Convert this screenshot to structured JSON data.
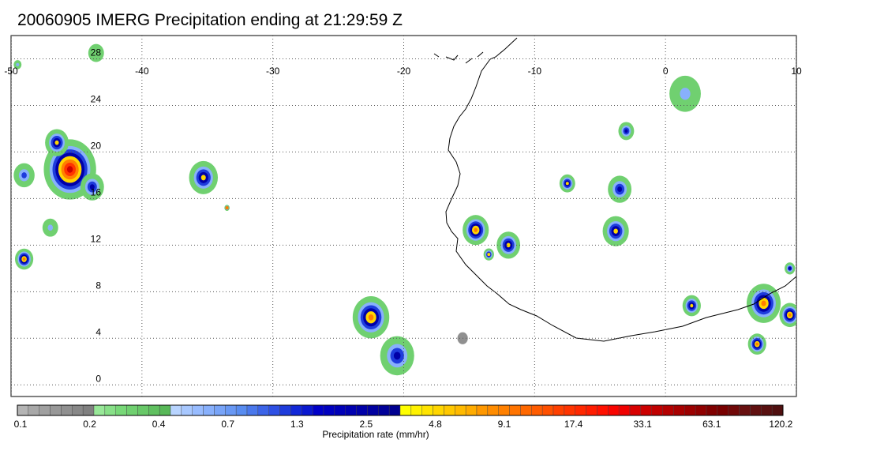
{
  "title": "20060905 IMERG Precipitation ending at 21:29:59 Z",
  "map": {
    "lon_min": -50,
    "lon_max": 10,
    "lat_min": -1,
    "lat_max": 30,
    "lon_ticks": [
      -50,
      -40,
      -30,
      -20,
      -10,
      0,
      10
    ],
    "lon_labels": [
      "-50",
      "-40",
      "-30",
      "-20",
      "-10",
      "0",
      "10"
    ],
    "lat_ticks": [
      0,
      4,
      8,
      12,
      16,
      20,
      24,
      28
    ],
    "lat_labels": [
      "0",
      "4",
      "8",
      "12",
      "16",
      "20",
      "24",
      "28"
    ],
    "coastline_color": "#000000",
    "grid_color": "#555555"
  },
  "colorbar": {
    "label": "Precipitation rate (mm/hr)",
    "tick_labels": [
      "0.1",
      "0.2",
      "0.4",
      "0.7",
      "1.3",
      "2.5",
      "4.8",
      "9.1",
      "17.4",
      "33.1",
      "63.1",
      "120.2"
    ],
    "colors": [
      "#b4b4b4",
      "#a8a8a8",
      "#a0a0a0",
      "#989898",
      "#909090",
      "#888888",
      "#808080",
      "#98e898",
      "#88e088",
      "#78d878",
      "#70d070",
      "#68c868",
      "#60c060",
      "#58b858",
      "#b8d4ff",
      "#a8c8ff",
      "#98bcff",
      "#88b0fc",
      "#78a4f8",
      "#6898f4",
      "#588cf0",
      "#4a78ec",
      "#3c64e8",
      "#2e50e4",
      "#1e3cdc",
      "#1228d8",
      "#0a18d0",
      "#0000c8",
      "#0000c0",
      "#0000b8",
      "#0000b0",
      "#0000a8",
      "#0000a0",
      "#000098",
      "#000090",
      "#ffff00",
      "#fff200",
      "#ffe400",
      "#ffd600",
      "#ffc800",
      "#ffba00",
      "#ffac00",
      "#ff9800",
      "#ff8c00",
      "#ff8000",
      "#ff7400",
      "#ff6800",
      "#ff5c00",
      "#ff5000",
      "#ff4000",
      "#ff3400",
      "#ff2800",
      "#ff1c00",
      "#ff1000",
      "#f80400",
      "#f00000",
      "#d80000",
      "#cc0000",
      "#c00000",
      "#b40000",
      "#a80000",
      "#9c0000",
      "#900000",
      "#800000",
      "#780000",
      "#700808",
      "#681010",
      "#601010",
      "#581010",
      "#501010"
    ]
  },
  "precipitation_cells": [
    {
      "name": "storm-cell-azores-northwest",
      "lon": -49.5,
      "lat": 27.5,
      "radius": 0.3,
      "peak": 0.7
    },
    {
      "name": "storm-cell-north-west-atlantic",
      "lon": -43.5,
      "lat": 28.5,
      "radius": 0.6,
      "peak": 0.4
    },
    {
      "name": "storm-cell-west-atlantic-large",
      "lon": -45.5,
      "lat": 18.5,
      "radius": 2.0,
      "peak": 33
    },
    {
      "name": "storm-cell-west-atlantic-north",
      "lon": -46.5,
      "lat": 20.8,
      "radius": 0.9,
      "peak": 6
    },
    {
      "name": "storm-cell-west-atlantic-tail",
      "lon": -43.8,
      "lat": 17.0,
      "radius": 0.9,
      "peak": 3
    },
    {
      "name": "storm-cell-west-edge",
      "lon": -49.0,
      "lat": 18.0,
      "radius": 0.8,
      "peak": 2
    },
    {
      "name": "storm-cell-west-small-south",
      "lon": -47.0,
      "lat": 13.5,
      "radius": 0.6,
      "peak": 0.7
    },
    {
      "name": "storm-cell-west-edge-12n",
      "lon": -49.0,
      "lat": 10.8,
      "radius": 0.7,
      "peak": 14
    },
    {
      "name": "storm-cell-central-atlantic",
      "lon": -35.3,
      "lat": 17.8,
      "radius": 1.1,
      "peak": 6
    },
    {
      "name": "storm-cell-central-small",
      "lon": -33.5,
      "lat": 15.2,
      "radius": 0.2,
      "peak": 9
    },
    {
      "name": "storm-cell-itcz-south-main",
      "lon": -22.5,
      "lat": 5.8,
      "radius": 1.4,
      "peak": 12
    },
    {
      "name": "storm-cell-itcz-south-tail",
      "lon": -20.5,
      "lat": 2.5,
      "radius": 1.3,
      "peak": 3
    },
    {
      "name": "storm-cell-senegal-coast",
      "lon": -14.5,
      "lat": 13.3,
      "radius": 1.0,
      "peak": 12
    },
    {
      "name": "storm-cell-gambia",
      "lon": -12.0,
      "lat": 12.0,
      "radius": 0.9,
      "peak": 8
    },
    {
      "name": "storm-cell-guinea-small",
      "lon": -13.5,
      "lat": 11.2,
      "radius": 0.4,
      "peak": 5
    },
    {
      "name": "storm-cell-mali-west",
      "lon": -7.5,
      "lat": 17.3,
      "radius": 0.6,
      "peak": 6
    },
    {
      "name": "storm-cell-mali-central",
      "lon": -3.5,
      "lat": 16.8,
      "radius": 0.9,
      "peak": 4
    },
    {
      "name": "storm-cell-burkina",
      "lon": -3.8,
      "lat": 13.2,
      "radius": 1.0,
      "peak": 6
    },
    {
      "name": "storm-cell-sahel-small",
      "lon": -3.0,
      "lat": 21.8,
      "radius": 0.6,
      "peak": 4
    },
    {
      "name": "storm-cell-sahara-band",
      "lon": 1.5,
      "lat": 25.0,
      "radius": 1.2,
      "peak": 1
    },
    {
      "name": "storm-cell-ghana-coast",
      "lon": 2.0,
      "lat": 6.8,
      "radius": 0.7,
      "peak": 8
    },
    {
      "name": "storm-cell-nigeria-east",
      "lon": 7.5,
      "lat": 7.0,
      "radius": 1.3,
      "peak": 12
    },
    {
      "name": "storm-cell-cameroon",
      "lon": 9.5,
      "lat": 6.0,
      "radius": 0.8,
      "peak": 10
    },
    {
      "name": "storm-cell-gulf-of-guinea",
      "lon": 7.0,
      "lat": 3.5,
      "radius": 0.7,
      "peak": 9
    },
    {
      "name": "storm-cell-gabon",
      "lon": 9.5,
      "lat": 10.0,
      "radius": 0.4,
      "peak": 3
    },
    {
      "name": "rain-patch-grey-gulf",
      "lon": -15.5,
      "lat": 4.0,
      "radius": 0.4,
      "peak": 0.15
    }
  ]
}
